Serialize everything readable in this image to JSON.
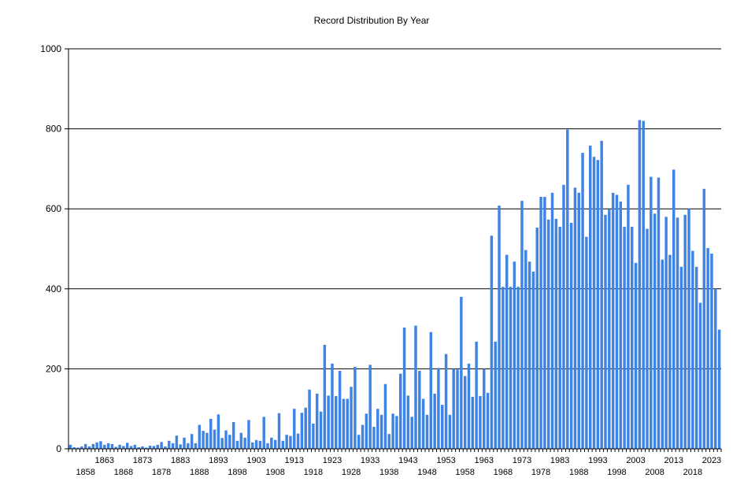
{
  "chart_data": {
    "type": "bar",
    "title": "Record Distribution By Year",
    "xlabel": "",
    "ylabel": "",
    "ylim": [
      0,
      1000
    ],
    "yticks": [
      0,
      200,
      400,
      600,
      800,
      1000
    ],
    "grid": "horizontal",
    "legend": "none",
    "bar_color": "#3f84e5",
    "x_start": 1854,
    "x_end": 2025,
    "xtick_labels_upper": [
      "1863",
      "1873",
      "1883",
      "1893",
      "1903",
      "1913",
      "1923",
      "1933",
      "1943",
      "1953",
      "1963",
      "1973",
      "1983",
      "1993",
      "2003",
      "2013",
      "2023"
    ],
    "xtick_labels_lower": [
      "1858",
      "1868",
      "1878",
      "1888",
      "1898",
      "1908",
      "1918",
      "1928",
      "1938",
      "1948",
      "1958",
      "1968",
      "1978",
      "1988",
      "1998",
      "2008",
      "2018"
    ],
    "values": [
      10,
      4,
      3,
      6,
      12,
      6,
      12,
      16,
      19,
      10,
      14,
      12,
      5,
      10,
      7,
      15,
      7,
      10,
      4,
      6,
      3,
      8,
      7,
      10,
      17,
      6,
      20,
      14,
      33,
      11,
      28,
      14,
      37,
      14,
      60,
      45,
      40,
      75,
      48,
      86,
      27,
      46,
      35,
      67,
      20,
      40,
      28,
      72,
      16,
      22,
      20,
      80,
      14,
      28,
      22,
      89,
      20,
      35,
      32,
      100,
      38,
      90,
      103,
      148,
      63,
      138,
      93,
      260,
      133,
      213,
      132,
      195,
      125,
      125,
      155,
      205,
      35,
      60,
      88,
      210,
      55,
      100,
      85,
      162,
      37,
      88,
      82,
      188,
      303,
      133,
      80,
      308,
      195,
      125,
      85,
      292,
      138,
      202,
      110,
      237,
      85,
      200,
      198,
      380,
      182,
      213,
      130,
      268,
      132,
      200,
      140,
      533,
      268,
      608,
      405,
      485,
      405,
      468,
      405,
      620,
      497,
      468,
      443,
      553,
      630,
      630,
      573,
      640,
      575,
      555,
      660,
      798,
      565,
      653,
      640,
      740,
      530,
      758,
      730,
      722,
      770,
      585,
      598,
      640,
      635,
      618,
      555,
      660,
      555,
      465,
      822,
      820,
      550,
      680,
      588,
      678,
      473,
      580,
      485,
      698,
      578,
      455,
      585,
      600,
      495,
      455,
      365,
      650,
      502,
      488,
      400,
      298
    ]
  }
}
